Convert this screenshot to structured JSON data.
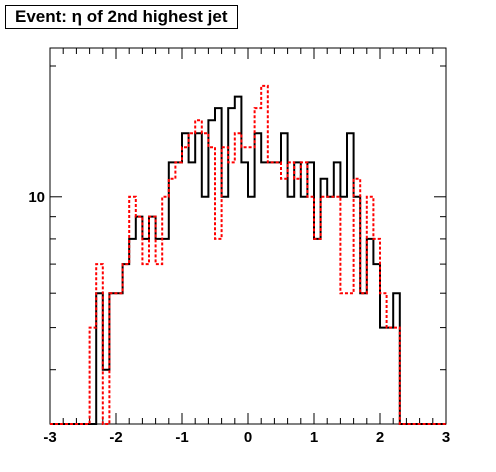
{
  "chart_data": {
    "type": "line",
    "title": "Event: η of 2nd highest jet",
    "xlabel": "",
    "ylabel": "",
    "xlim": [
      -3,
      3
    ],
    "ylog": true,
    "ylim": [
      3,
      22
    ],
    "grid": false,
    "x_ticks": [
      "-3",
      "-2",
      "-1",
      "0",
      "1",
      "2",
      "3"
    ],
    "y_ticks": [
      "10"
    ],
    "bin_edges": [
      -3.0,
      -2.9,
      -2.8,
      -2.7,
      -2.6,
      -2.5,
      -2.4,
      -2.3,
      -2.2,
      -2.1,
      -2.0,
      -1.9,
      -1.8,
      -1.7,
      -1.6,
      -1.5,
      -1.4,
      -1.3,
      -1.2,
      -1.1,
      -1.0,
      -0.9,
      -0.8,
      -0.7,
      -0.6,
      -0.5,
      -0.4,
      -0.3,
      -0.2,
      -0.1,
      0.0,
      0.1,
      0.2,
      0.3,
      0.4,
      0.5,
      0.6,
      0.7,
      0.8,
      0.9,
      1.0,
      1.1,
      1.2,
      1.3,
      1.4,
      1.5,
      1.6,
      1.7,
      1.8,
      1.9,
      2.0,
      2.1,
      2.2,
      2.3,
      2.4,
      2.5,
      2.6,
      2.7,
      2.8,
      2.9,
      3.0
    ],
    "series": [
      {
        "color": "#000000",
        "style": "solid",
        "values": [
          0,
          0,
          0,
          0,
          0,
          0,
          0,
          6,
          4,
          6,
          6,
          7,
          8,
          9,
          8,
          9,
          8,
          8,
          12,
          12,
          14,
          12,
          14,
          10,
          15,
          16,
          10,
          16,
          17,
          12,
          10,
          14,
          12,
          12,
          12,
          14,
          10,
          12,
          10,
          12,
          8,
          11,
          10,
          12,
          10,
          14,
          10,
          6,
          8,
          7,
          5,
          5,
          6,
          0,
          0,
          0,
          0,
          0,
          0,
          0
        ]
      },
      {
        "color": "#ff0000",
        "style": "dashed",
        "values": [
          0,
          0,
          0,
          0,
          0,
          0,
          5,
          7,
          3,
          6,
          6,
          7,
          10,
          9,
          7,
          9,
          7,
          10,
          11,
          12,
          13,
          14,
          15,
          14,
          13,
          8,
          13,
          12,
          14,
          13,
          13,
          16,
          18,
          12,
          12,
          11,
          12,
          11,
          12,
          10,
          8,
          10,
          10,
          10,
          6,
          6,
          11,
          6,
          10,
          8,
          6,
          5,
          5,
          0,
          0,
          0,
          0,
          0,
          0,
          0
        ]
      }
    ]
  }
}
